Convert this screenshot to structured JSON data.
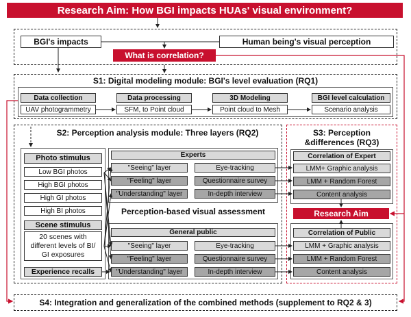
{
  "header": {
    "title": "Research Aim: How BGI impacts HUAs' visual environment?"
  },
  "top": {
    "bgi_impacts": "BGI's impacts",
    "correlation": "What is correlation?",
    "human_perception": "Human being's visual perception"
  },
  "s1": {
    "title": "S1: Digital modeling module: BGI's level evaluation (RQ1)",
    "steps": [
      {
        "label": "Data collection",
        "detail": "UAV photogrammetry"
      },
      {
        "label": "Data processing",
        "detail": "SFM, to Point cloud"
      },
      {
        "label": "3D Modeling",
        "detail": "Point cloud to Mesh"
      },
      {
        "label": "BGI level calculation",
        "detail": "Scenario analysis"
      }
    ]
  },
  "s2": {
    "title": "S2: Perception analysis module: Three layers (RQ2)",
    "photo_stimulus": {
      "label": "Photo stimulus",
      "items": [
        "Low BGI photos",
        "High BGI photos",
        "High GI photos",
        "High BI photos"
      ]
    },
    "scene_stimulus": {
      "label": "Scene stimulus",
      "line1": "20 scenes with",
      "line2": "different levels of BI/",
      "line3": "GI exposures"
    },
    "experience": "Experience recalls",
    "experts": {
      "label": "Experts",
      "rows": [
        {
          "layer": "\"Seeing\" layer",
          "method": "Eye-tracking"
        },
        {
          "layer": "\"Feeling\" layer",
          "method": "Questionnaire survey"
        },
        {
          "layer": "\"Understanding\" layer",
          "method": "In-depth interview"
        }
      ]
    },
    "assessment": "Perception-based visual assessment",
    "public": {
      "label": "General public",
      "rows": [
        {
          "layer": "\"Seeing\" layer",
          "method": "Eye-tracking"
        },
        {
          "layer": "\"Feeling\" layer",
          "method": "Questionnaire survey"
        },
        {
          "layer": "\"Understanding\" layer",
          "method": "In-depth interview"
        }
      ]
    }
  },
  "s3": {
    "title_line1": "S3: Perception",
    "title_line2": "&differences (RQ3)",
    "expert": {
      "label": "Correlation of Expert",
      "items": [
        "LMM+ Graphic analysis",
        "LMM + Random Forest",
        "Content analysis"
      ]
    },
    "research_aim": "Research Aim",
    "public": {
      "label": "Correlation of Public",
      "items": [
        "LMM + Graphic analysis",
        "LMM + Random Forest",
        "Content analysis"
      ]
    }
  },
  "s4": {
    "title": "S4: Integration and generalization of the combined methods (supplement to RQ2 & 3)"
  },
  "colors": {
    "accent_red": "#c8102e",
    "label_gray": "#d9d9d9",
    "dark_gray": "#a6a6a6"
  }
}
